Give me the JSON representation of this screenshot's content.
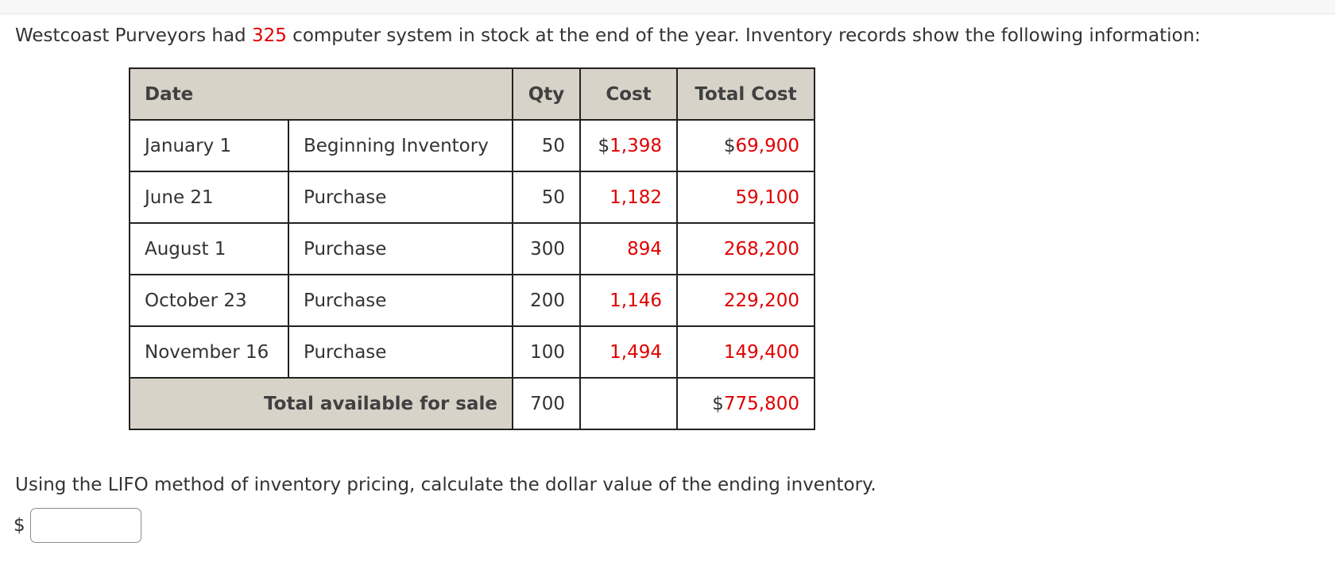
{
  "intro": {
    "before": "Westcoast Purveyors had ",
    "count": "325",
    "after": " computer system in stock at the end of the year. Inventory records show the following information:"
  },
  "table": {
    "headers": {
      "date": "Date",
      "qty": "Qty",
      "cost": "Cost",
      "total": "Total Cost"
    },
    "rows": [
      {
        "date": "January 1",
        "desc": "Beginning Inventory",
        "qty": "50",
        "cost_prefix": "$",
        "cost": "1,398",
        "total_prefix": "$",
        "total": "69,900"
      },
      {
        "date": "June 21",
        "desc": "Purchase",
        "qty": "50",
        "cost_prefix": "",
        "cost": "1,182",
        "total_prefix": "",
        "total": "59,100"
      },
      {
        "date": "August 1",
        "desc": "Purchase",
        "qty": "300",
        "cost_prefix": "",
        "cost": "894",
        "total_prefix": "",
        "total": "268,200"
      },
      {
        "date": "October 23",
        "desc": "Purchase",
        "qty": "200",
        "cost_prefix": "",
        "cost": "1,146",
        "total_prefix": "",
        "total": "229,200"
      },
      {
        "date": "November 16",
        "desc": "Purchase",
        "qty": "100",
        "cost_prefix": "",
        "cost": "1,494",
        "total_prefix": "",
        "total": "149,400"
      }
    ],
    "footer": {
      "label": "Total available for sale",
      "qty": "700",
      "total_prefix": "$",
      "total": "775,800"
    }
  },
  "question": "Using the LIFO method of inventory pricing, calculate the dollar value of the ending inventory.",
  "answer": {
    "currency": "$",
    "value": ""
  },
  "colors": {
    "highlight": "#e00000",
    "header_bg": "#d7d3c8"
  }
}
